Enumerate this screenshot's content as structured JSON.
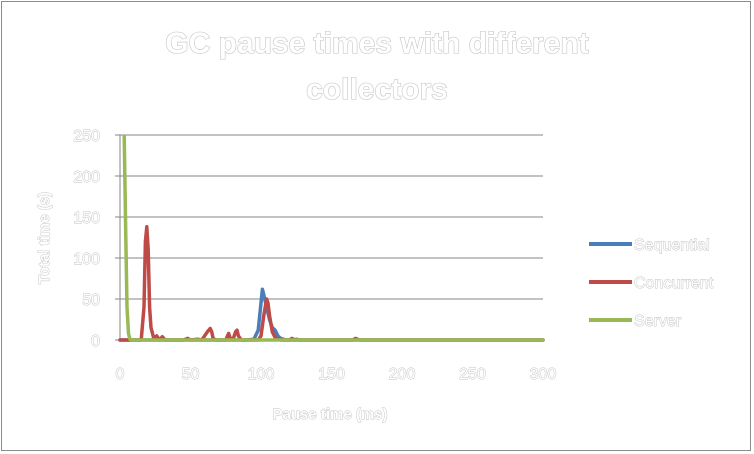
{
  "chart_data": {
    "type": "line",
    "title_lines": [
      "GC pause times with different",
      "collectors"
    ],
    "xlabel": "Pause time (ms)",
    "ylabel": "Total time (s)",
    "xlim": [
      0,
      300
    ],
    "ylim": [
      0,
      250
    ],
    "x_ticks": [
      "0",
      "50",
      "100",
      "150",
      "200",
      "250",
      "300"
    ],
    "y_ticks": [
      "0",
      "50",
      "100",
      "150",
      "200",
      "250"
    ],
    "grid": "horizontal",
    "legend_position": "right",
    "series": [
      {
        "name": "Sequential",
        "color": "#4a7ebb",
        "points": [
          [
            0,
            0
          ],
          [
            90,
            0
          ],
          [
            95,
            1
          ],
          [
            98,
            12
          ],
          [
            100,
            45
          ],
          [
            101,
            62
          ],
          [
            102,
            55
          ],
          [
            104,
            40
          ],
          [
            106,
            25
          ],
          [
            108,
            15
          ],
          [
            110,
            12
          ],
          [
            112,
            5
          ],
          [
            114,
            2
          ],
          [
            118,
            0
          ],
          [
            124,
            0
          ],
          [
            125,
            1
          ],
          [
            127,
            0
          ],
          [
            300,
            0
          ]
        ]
      },
      {
        "name": "Concurrent",
        "color": "#be4b48",
        "points": [
          [
            0,
            0
          ],
          [
            15,
            0
          ],
          [
            17,
            40
          ],
          [
            18,
            120
          ],
          [
            19,
            138
          ],
          [
            20,
            110
          ],
          [
            21,
            40
          ],
          [
            22,
            15
          ],
          [
            24,
            2
          ],
          [
            26,
            5
          ],
          [
            28,
            0
          ],
          [
            30,
            4
          ],
          [
            32,
            0
          ],
          [
            45,
            0
          ],
          [
            48,
            2
          ],
          [
            50,
            0
          ],
          [
            55,
            1
          ],
          [
            58,
            0
          ],
          [
            62,
            10
          ],
          [
            64,
            14
          ],
          [
            65,
            10
          ],
          [
            66,
            2
          ],
          [
            68,
            0
          ],
          [
            75,
            0
          ],
          [
            77,
            8
          ],
          [
            78,
            3
          ],
          [
            80,
            0
          ],
          [
            82,
            10
          ],
          [
            83,
            12
          ],
          [
            84,
            5
          ],
          [
            86,
            0
          ],
          [
            98,
            0
          ],
          [
            100,
            5
          ],
          [
            102,
            30
          ],
          [
            104,
            50
          ],
          [
            105,
            45
          ],
          [
            106,
            30
          ],
          [
            108,
            10
          ],
          [
            110,
            3
          ],
          [
            114,
            0
          ],
          [
            120,
            0
          ],
          [
            122,
            2
          ],
          [
            124,
            0
          ],
          [
            165,
            0
          ],
          [
            167,
            2
          ],
          [
            170,
            0
          ],
          [
            300,
            0
          ]
        ]
      },
      {
        "name": "Server",
        "color": "#98b954",
        "points": [
          [
            3,
            250
          ],
          [
            4,
            140
          ],
          [
            5,
            40
          ],
          [
            6,
            8
          ],
          [
            7,
            1
          ],
          [
            8,
            0
          ],
          [
            300,
            0
          ]
        ]
      }
    ]
  }
}
